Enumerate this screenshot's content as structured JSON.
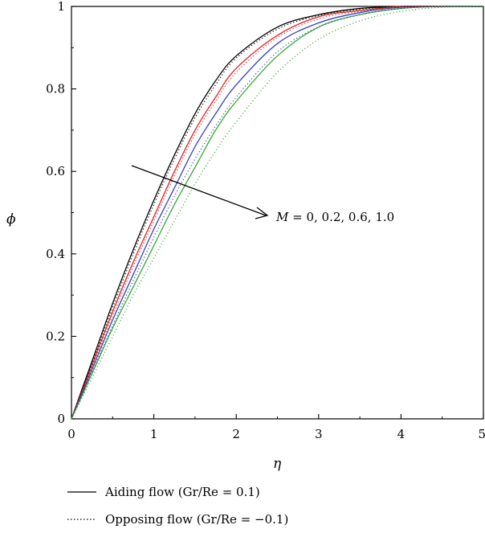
{
  "chart_data": {
    "type": "line",
    "xlabel": "η",
    "ylabel": "ϕ",
    "xlim": [
      0,
      5
    ],
    "ylim": [
      0,
      1
    ],
    "x_ticks": [
      "0",
      "1",
      "2",
      "3",
      "4",
      "5"
    ],
    "y_ticks": [
      "0",
      "0.2",
      "0.4",
      "0.6",
      "0.8",
      "1"
    ],
    "grid": false,
    "annotation": {
      "prefix": "M",
      "text": " = 0, 0.2, 0.6, 1.0"
    },
    "legend": {
      "placement": "bottom",
      "entries": [
        {
          "label": "Aiding flow (Gr/Re = 0.1)",
          "style": "solid"
        },
        {
          "label": "Opposing flow (Gr/Re = −0.1)",
          "style": "dotted"
        }
      ]
    },
    "x": [
      0,
      0.25,
      0.5,
      0.75,
      1.0,
      1.25,
      1.5,
      1.75,
      2.0,
      2.5,
      3.0,
      3.5,
      4.0,
      4.5,
      5.0
    ],
    "series": [
      {
        "color": "#000000",
        "style": "solid",
        "values": [
          0,
          0.14,
          0.28,
          0.41,
          0.53,
          0.64,
          0.74,
          0.82,
          0.88,
          0.95,
          0.98,
          0.995,
          1.0,
          1.0,
          1.0
        ]
      },
      {
        "color": "#dd2222",
        "style": "solid",
        "values": [
          0,
          0.13,
          0.26,
          0.38,
          0.49,
          0.6,
          0.7,
          0.78,
          0.85,
          0.93,
          0.975,
          0.99,
          1.0,
          1.0,
          1.0
        ]
      },
      {
        "color": "#3344bb",
        "style": "solid",
        "values": [
          0,
          0.12,
          0.24,
          0.35,
          0.46,
          0.56,
          0.66,
          0.74,
          0.81,
          0.91,
          0.96,
          0.985,
          0.998,
          1.0,
          1.0
        ]
      },
      {
        "color": "#33aa33",
        "style": "solid",
        "values": [
          0,
          0.11,
          0.22,
          0.32,
          0.42,
          0.52,
          0.61,
          0.7,
          0.77,
          0.88,
          0.95,
          0.98,
          0.995,
          1.0,
          1.0
        ]
      },
      {
        "color": "#000000",
        "style": "dotted",
        "values": [
          0,
          0.135,
          0.27,
          0.4,
          0.52,
          0.63,
          0.73,
          0.81,
          0.875,
          0.945,
          0.978,
          0.993,
          1.0,
          1.0,
          1.0
        ]
      },
      {
        "color": "#dd2222",
        "style": "dotted",
        "values": [
          0,
          0.125,
          0.25,
          0.37,
          0.48,
          0.59,
          0.69,
          0.77,
          0.84,
          0.925,
          0.97,
          0.988,
          0.998,
          1.0,
          1.0
        ]
      },
      {
        "color": "#3344bb",
        "style": "dotted",
        "values": [
          0,
          0.113,
          0.226,
          0.335,
          0.44,
          0.54,
          0.63,
          0.71,
          0.78,
          0.89,
          0.95,
          0.98,
          0.995,
          1.0,
          1.0
        ]
      },
      {
        "color": "#33aa33",
        "style": "dotted",
        "values": [
          0,
          0.1,
          0.2,
          0.3,
          0.39,
          0.48,
          0.57,
          0.65,
          0.72,
          0.84,
          0.92,
          0.965,
          0.988,
          0.998,
          1.0
        ]
      }
    ]
  }
}
